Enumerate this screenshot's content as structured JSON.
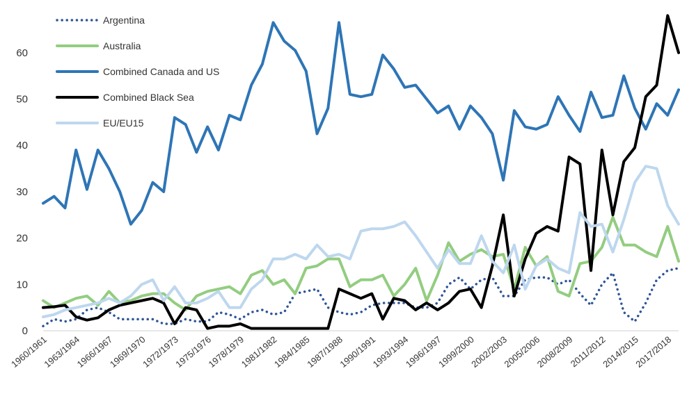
{
  "chart_data": {
    "type": "line",
    "title": "",
    "xlabel": "",
    "ylabel": "",
    "ylim": [
      0,
      70
    ],
    "yticks": [
      0,
      10,
      20,
      30,
      40,
      50,
      60
    ],
    "grid": false,
    "legend_position": "top-left",
    "x": [
      "1960/1961",
      "1961/1962",
      "1962/1963",
      "1963/1964",
      "1964/1965",
      "1965/1966",
      "1966/1967",
      "1967/1968",
      "1968/1969",
      "1969/1970",
      "1970/1971",
      "1971/1972",
      "1972/1973",
      "1973/1974",
      "1974/1975",
      "1975/1976",
      "1976/1977",
      "1977/1978",
      "1978/1979",
      "1979/1980",
      "1980/1981",
      "1981/1982",
      "1982/1983",
      "1983/1984",
      "1984/1985",
      "1985/1986",
      "1986/1987",
      "1987/1988",
      "1988/1989",
      "1989/1990",
      "1990/1991",
      "1991/1992",
      "1992/1993",
      "1993/1994",
      "1994/1995",
      "1995/1996",
      "1996/1997",
      "1997/1998",
      "1998/1999",
      "1999/2000",
      "2000/2001",
      "2001/2002",
      "2002/2003",
      "2003/2004",
      "2004/2005",
      "2005/2006",
      "2006/2007",
      "2007/2008",
      "2008/2009",
      "2009/2010",
      "2010/2011",
      "2011/2012",
      "2012/2013",
      "2013/2014",
      "2014/2015",
      "2015/2016",
      "2016/2017",
      "2017/2018",
      "2018/2019"
    ],
    "x_tick_labels": [
      "1960/1961",
      "1963/1964",
      "1966/1967",
      "1969/1970",
      "1972/1973",
      "1975/1976",
      "1978/1979",
      "1981/1982",
      "1984/1985",
      "1987/1988",
      "1990/1991",
      "1993/1994",
      "1996/1997",
      "1999/2000",
      "2002/2003",
      "2005/2006",
      "2008/2009",
      "2011/2012",
      "2014/2015",
      "2017/2018"
    ],
    "series": [
      {
        "name": "Argentina",
        "color": "#2e5597",
        "style": "dotted",
        "values": [
          1,
          2.5,
          2,
          2.5,
          4.5,
          5,
          4,
          2.5,
          2.5,
          2.5,
          2.5,
          1.5,
          1.5,
          2.5,
          2,
          2,
          4,
          3.5,
          2.5,
          4,
          4.5,
          3.5,
          4,
          8,
          8.5,
          9,
          5,
          4,
          3.5,
          4,
          5.5,
          6,
          6,
          6,
          5,
          5,
          6,
          10,
          11.5,
          9,
          11,
          11.5,
          7.5,
          7.5,
          11,
          11.5,
          11.5,
          10,
          11,
          8,
          5.5,
          10,
          12.5,
          4,
          2,
          6,
          11,
          13,
          13.5
        ]
      },
      {
        "name": "Australia",
        "color": "#93cd80",
        "style": "solid",
        "values": [
          6.5,
          5,
          6,
          7,
          7.5,
          5.5,
          8.5,
          6,
          6.5,
          7.5,
          8,
          8,
          6,
          4.5,
          7.5,
          8.5,
          9,
          9.5,
          8,
          12,
          13,
          10,
          11,
          8,
          13.5,
          14,
          15.5,
          15.5,
          9.5,
          11,
          11,
          12,
          7.5,
          10,
          13.5,
          6.5,
          12,
          19,
          15,
          16.5,
          17.5,
          16,
          16.5,
          9,
          18,
          14,
          16,
          8.5,
          7.5,
          14.5,
          15,
          18,
          24.5,
          18.5,
          18.5,
          17,
          16,
          22.5,
          15
        ]
      },
      {
        "name": "Combined Canada and US",
        "color": "#2e75b6",
        "style": "solid",
        "values": [
          27.5,
          29,
          26.5,
          39,
          30.5,
          39,
          35,
          30,
          23,
          26,
          32,
          30,
          46,
          44.5,
          38.5,
          44,
          39,
          46.5,
          45.5,
          53,
          57.5,
          66.5,
          62.5,
          60.5,
          56,
          42.5,
          48,
          66.5,
          51,
          50.5,
          51,
          59.5,
          56.5,
          52.5,
          53,
          50,
          47,
          48.5,
          43.5,
          48.5,
          46,
          42.5,
          32.5,
          47.5,
          44,
          43.5,
          44.5,
          50.5,
          46.5,
          43,
          51.5,
          46,
          46.5,
          55,
          48,
          43.5,
          49,
          46.5,
          52
        ]
      },
      {
        "name": "Combined Black Sea",
        "color": "#000000",
        "style": "solid",
        "values": [
          5,
          5.2,
          5.5,
          3,
          2.3,
          2.8,
          4.5,
          5.5,
          6,
          6.5,
          7,
          6,
          1.5,
          5,
          4.5,
          0.5,
          1,
          1,
          1.5,
          0.5,
          0.5,
          0.5,
          0.5,
          0.5,
          0.5,
          0.5,
          0.5,
          9,
          8,
          7,
          8,
          2.5,
          7,
          6.5,
          4.5,
          6,
          4.5,
          6,
          8.5,
          9,
          5,
          14,
          25,
          7.5,
          15.5,
          21,
          22.5,
          21.5,
          37.5,
          36,
          13,
          39,
          25,
          36.5,
          39.5,
          50.5,
          53,
          68,
          60
        ]
      },
      {
        "name": "EU/EU15",
        "color": "#bdd7ee",
        "style": "solid",
        "values": [
          3,
          3.5,
          4.5,
          5,
          5.5,
          6,
          7,
          6,
          7.5,
          10,
          11,
          6.5,
          9.5,
          6,
          6,
          7,
          8.5,
          5,
          5,
          9,
          11,
          15.5,
          15.5,
          16.5,
          15.5,
          18.5,
          16,
          16.5,
          15.5,
          21.5,
          22,
          22,
          22.5,
          23.5,
          20.5,
          17,
          13.5,
          17.5,
          14.5,
          14.5,
          20.5,
          15,
          12.5,
          18.5,
          9,
          14,
          15.5,
          13.5,
          12.5,
          25.5,
          22.5,
          23,
          17,
          24,
          32,
          35.5,
          35,
          27,
          23
        ]
      }
    ]
  }
}
